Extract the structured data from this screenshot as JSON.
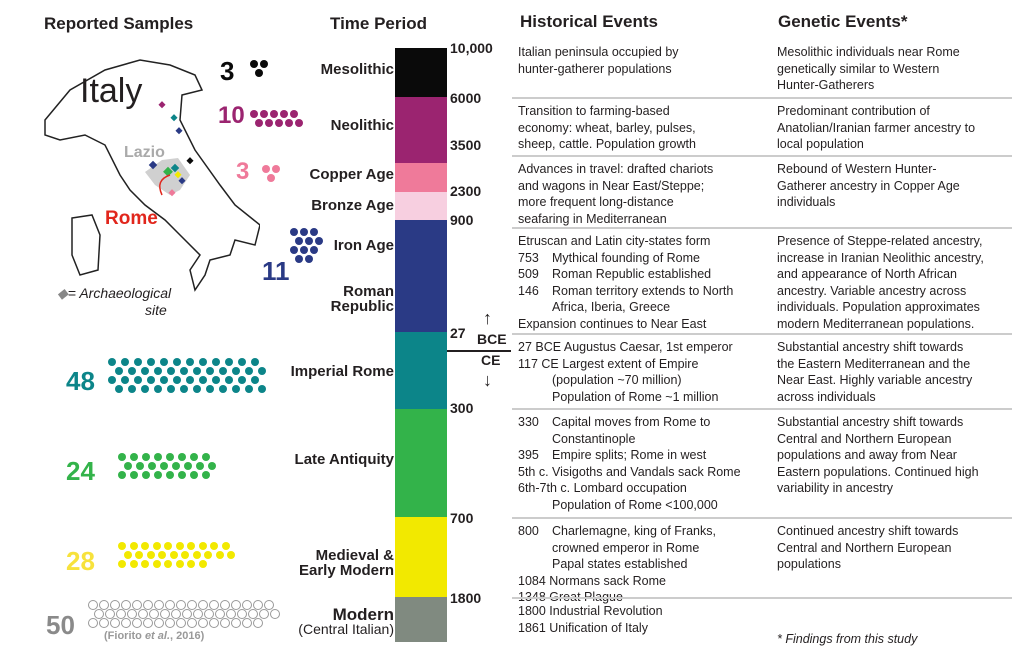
{
  "headers": {
    "samples": "Reported Samples",
    "time": "Time Period",
    "historical": "Historical Events",
    "genetic": "Genetic Events*"
  },
  "map": {
    "country": "Italy",
    "region": "Lazio",
    "city": "Rome",
    "legend_symbol": "◆",
    "legend_text": "= Archaeological site",
    "legend_line1": "= Archaeological",
    "legend_line2": "site"
  },
  "periods": [
    {
      "name": "Mesolithic",
      "color": "#0a0a0a",
      "count": "3",
      "n": 3
    },
    {
      "name": "Neolithic",
      "color": "#9b2470",
      "count": "10",
      "n": 10
    },
    {
      "name": "Copper Age",
      "color": "#ef7a9a",
      "count": "3",
      "n": 3
    },
    {
      "name": "Bronze Age",
      "color": "#f7cfe0",
      "count": "",
      "n": 0
    },
    {
      "name": "Iron Age",
      "color": "#2a3a85",
      "count": "11",
      "n": 11
    },
    {
      "name": "Roman Republic",
      "line1": "Roman",
      "line2": "Republic",
      "color": "#2a3a85"
    },
    {
      "name": "Imperial Rome",
      "color": "#0c8589",
      "count": "48",
      "n": 48
    },
    {
      "name": "Late Antiquity",
      "color": "#33b34a",
      "count": "24",
      "n": 24
    },
    {
      "name": "Medieval & Early Modern",
      "line1": "Medieval &",
      "line2": "Early Modern",
      "color": "#f2e900",
      "count": "28",
      "n": 28
    },
    {
      "name": "Modern",
      "sub": "(Central Italian)",
      "color": "#808a80",
      "count": "50",
      "n": 50
    }
  ],
  "citation": {
    "pre": "(Fiorito ",
    "em": "et al.",
    "post": ", 2016)"
  },
  "ticks": [
    "10,000",
    "6000",
    "3500",
    "2300",
    "900",
    "27",
    "300",
    "700",
    "1800"
  ],
  "era": {
    "bce": "BCE",
    "ce": "CE",
    "up": "↑",
    "down": "↓"
  },
  "rows": [
    {
      "hist": [
        "Italian peninsula occupied by",
        "hunter-gatherer populations"
      ],
      "gen": [
        "Mesolithic individuals near Rome",
        "genetically similar to Western",
        "Hunter-Gatherers"
      ]
    },
    {
      "hist": [
        "Transition to farming-based",
        "economy: wheat, barley, pulses,",
        "sheep, cattle. Population growth"
      ],
      "gen": [
        "Predominant contribution of",
        "Anatolian/Iranian farmer ancestry to",
        "local population"
      ]
    },
    {
      "hist": [
        "Advances in travel: drafted chariots",
        "and wagons in Near East/Steppe;",
        "more frequent long-distance",
        "seafaring in Mediterranean"
      ],
      "gen": [
        "Rebound of Western Hunter-",
        "Gatherer ancestry in Copper Age",
        "individuals"
      ]
    },
    {
      "hist": [
        "Etruscan and Latin city-states form",
        "753|Mythical founding of Rome",
        "509|Roman Republic established",
        "146|Roman territory extends to North",
        "|Africa, Iberia, Greece",
        "Expansion continues to Near East"
      ],
      "gen": [
        "Presence of Steppe-related ancestry,",
        "increase in Iranian Neolithic ancestry,",
        "and appearance of North African",
        "ancestry. Variable ancestry across",
        "individuals. Population approximates",
        "modern Mediterranean populations."
      ]
    },
    {
      "hist": [
        "27 BCE Augustus Caesar, 1st emperor",
        "117 CE Largest extent of Empire",
        "|   (population ~70 million)",
        "|   Population of Rome ~1 million"
      ],
      "gen": [
        "Substantial ancestry shift towards",
        "the Eastern Mediterranean and the",
        "Near East. Highly variable ancestry",
        "across individuals"
      ]
    },
    {
      "hist": [
        "330|Capital moves from Rome to",
        "|Constantinople",
        "395|Empire splits; Rome in west",
        "5th c.|Visigoths and Vandals sack Rome",
        "6th-7th c. Lombard occupation",
        "|Population of Rome <100,000"
      ],
      "gen": [
        "Substantial ancestry shift towards",
        "Central and Northern European",
        "populations and away from Near",
        "Eastern populations. Continued high",
        "variability in ancestry"
      ]
    },
    {
      "hist": [
        "800|Charlemagne, king of Franks,",
        "|crowned emperor in Rome",
        "|Papal states established",
        "1084 Normans sack Rome",
        "1348 Great Plague"
      ],
      "gen": [
        "Continued ancestry shift towards",
        "Central and Northern European",
        "populations"
      ]
    },
    {
      "hist": [
        "1800 Industrial Revolution",
        "1861 Unification of Italy"
      ],
      "gen": [
        "",
        "",
        "* Findings from this study"
      ]
    }
  ]
}
